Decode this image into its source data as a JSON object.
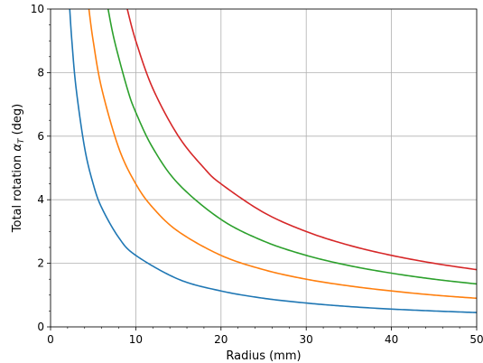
{
  "chart_data": {
    "type": "line",
    "title": "",
    "xlabel": "Radius (mm)",
    "ylabel_prefix": "Total rotation ",
    "ylabel_symbol": "α",
    "ylabel_subscript": "T",
    "ylabel_suffix": " (deg)",
    "xlim": [
      0,
      50
    ],
    "ylim": [
      0,
      10
    ],
    "x_ticks": [
      0,
      10,
      20,
      30,
      40,
      50
    ],
    "x_tick_labels": [
      "0",
      "10",
      "20",
      "30",
      "40",
      "50"
    ],
    "x_minor_step": 2,
    "y_ticks": [
      0,
      2,
      4,
      6,
      8,
      10
    ],
    "y_tick_labels": [
      "0",
      "2",
      "4",
      "6",
      "8",
      "10"
    ],
    "y_minor_step": 0.5,
    "grid": true,
    "legend": "none",
    "series": [
      {
        "color": "#1f77b4",
        "x": [
          2.25,
          2.5,
          3,
          4,
          5,
          6,
          8,
          10,
          15,
          20,
          25,
          30,
          35,
          40,
          45,
          50
        ],
        "y": [
          10.0,
          9.0,
          7.5,
          5.63,
          4.5,
          3.75,
          2.81,
          2.25,
          1.5,
          1.13,
          0.9,
          0.75,
          0.64,
          0.56,
          0.5,
          0.45
        ]
      },
      {
        "color": "#ff7f0e",
        "x": [
          4.5,
          5,
          6,
          8,
          10,
          12,
          15,
          20,
          25,
          30,
          35,
          40,
          45,
          50
        ],
        "y": [
          10.0,
          9.0,
          7.5,
          5.63,
          4.5,
          3.75,
          3.0,
          2.25,
          1.8,
          1.5,
          1.29,
          1.13,
          1.0,
          0.9
        ]
      },
      {
        "color": "#2ca02c",
        "x": [
          6.75,
          7.5,
          9,
          10,
          12,
          15,
          20,
          25,
          30,
          35,
          40,
          45,
          50
        ],
        "y": [
          10.0,
          9.0,
          7.5,
          6.75,
          5.63,
          4.5,
          3.38,
          2.7,
          2.25,
          1.93,
          1.69,
          1.5,
          1.35
        ]
      },
      {
        "color": "#d62728",
        "x": [
          9,
          10,
          12,
          15,
          18,
          20,
          25,
          30,
          35,
          40,
          45,
          50
        ],
        "y": [
          10.0,
          9.0,
          7.5,
          6.0,
          5.0,
          4.5,
          3.6,
          3.0,
          2.57,
          2.25,
          2.0,
          1.8
        ]
      }
    ]
  }
}
